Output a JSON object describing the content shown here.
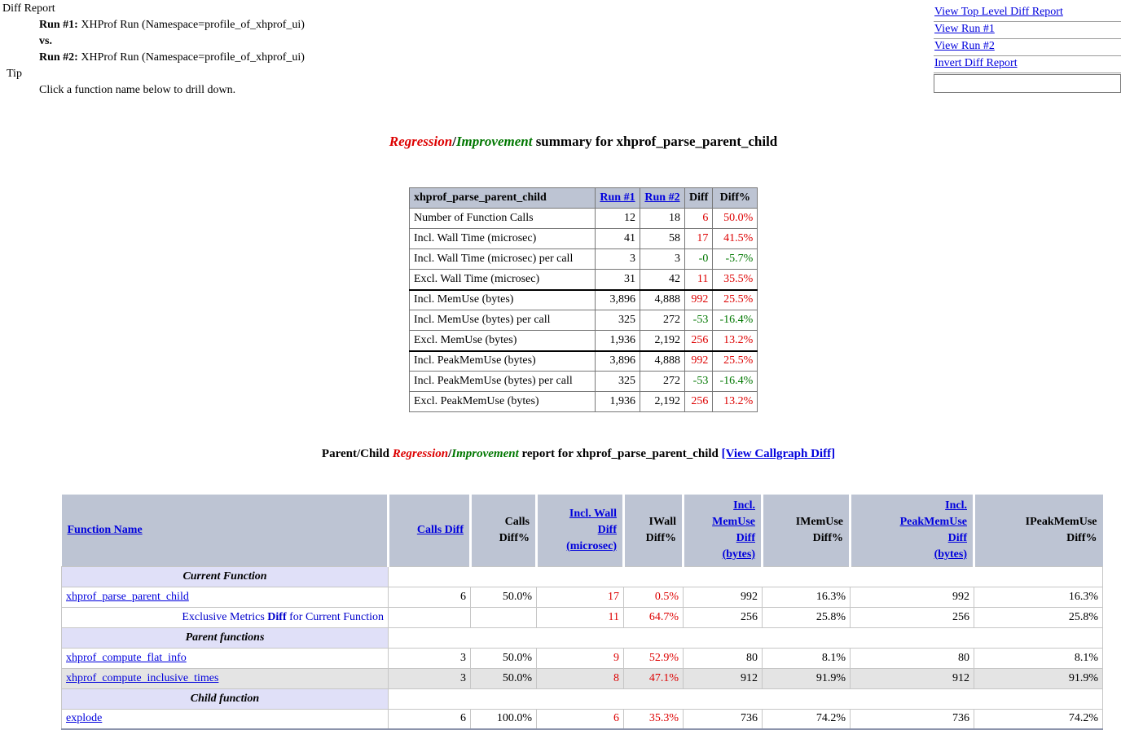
{
  "colors": {
    "link_blue": "#0000dd",
    "regression_red": "#dd0000",
    "improvement_green": "#007700",
    "table_header_bg": "#bdc4d3",
    "section_row_bg": "#e0e0f8",
    "shaded_row_bg": "#e4e4e4",
    "exclusive_label_blue": "#0000cc"
  },
  "top": {
    "diff_report": "Diff Report",
    "run1_label": "Run #1:",
    "run1_text": "XHProf Run (Namespace=profile_of_xhprof_ui)",
    "vs": "vs.",
    "run2_label": "Run #2:",
    "run2_text": "XHProf Run (Namespace=profile_of_xhprof_ui)",
    "tip_label": "Tip",
    "tip_text": "Click a function name below to drill down."
  },
  "nav": {
    "links": [
      "View Top Level Diff Report",
      "View Run #1",
      "View Run #2",
      "Invert Diff Report"
    ],
    "search_value": ""
  },
  "summary_title": {
    "part1": "Regression",
    "slash": "/",
    "part2": "Improvement",
    "rest": " summary for xhprof_parse_parent_child"
  },
  "summary_table": {
    "header": {
      "name": "xhprof_parse_parent_child",
      "run1": "Run #1",
      "run2": "Run #2",
      "diff": "Diff",
      "diffpct": "Diff%"
    },
    "rows": [
      {
        "label": "Number of Function Calls",
        "run1": "12",
        "run2": "18",
        "diff": "6",
        "diffpct": "50.0%",
        "trend": "red",
        "group_start": false
      },
      {
        "label": "Incl. Wall Time (microsec)",
        "run1": "41",
        "run2": "58",
        "diff": "17",
        "diffpct": "41.5%",
        "trend": "red",
        "group_start": false
      },
      {
        "label": "Incl. Wall Time (microsec) per call",
        "run1": "3",
        "run2": "3",
        "diff": "-0",
        "diffpct": "-5.7%",
        "trend": "green",
        "group_start": false
      },
      {
        "label": "Excl. Wall Time (microsec)",
        "run1": "31",
        "run2": "42",
        "diff": "11",
        "diffpct": "35.5%",
        "trend": "red",
        "group_start": false
      },
      {
        "label": "Incl. MemUse (bytes)",
        "run1": "3,896",
        "run2": "4,888",
        "diff": "992",
        "diffpct": "25.5%",
        "trend": "red",
        "group_start": true
      },
      {
        "label": "Incl. MemUse (bytes) per call",
        "run1": "325",
        "run2": "272",
        "diff": "-53",
        "diffpct": "-16.4%",
        "trend": "green",
        "group_start": false
      },
      {
        "label": "Excl. MemUse (bytes)",
        "run1": "1,936",
        "run2": "2,192",
        "diff": "256",
        "diffpct": "13.2%",
        "trend": "red",
        "group_start": false
      },
      {
        "label": "Incl. PeakMemUse (bytes)",
        "run1": "3,896",
        "run2": "4,888",
        "diff": "992",
        "diffpct": "25.5%",
        "trend": "red",
        "group_start": true
      },
      {
        "label": "Incl. PeakMemUse (bytes) per call",
        "run1": "325",
        "run2": "272",
        "diff": "-53",
        "diffpct": "-16.4%",
        "trend": "green",
        "group_start": false
      },
      {
        "label": "Excl. PeakMemUse (bytes)",
        "run1": "1,936",
        "run2": "2,192",
        "diff": "256",
        "diffpct": "13.2%",
        "trend": "red",
        "group_start": false
      }
    ]
  },
  "report_title": {
    "prefix": "Parent/Child ",
    "part1": "Regression",
    "slash": "/",
    "part2": "Improvement",
    "rest": " report for xhprof_parse_parent_child ",
    "callgraph_link": "[View Callgraph Diff]"
  },
  "report_table": {
    "columns": [
      {
        "label": "Function Name",
        "link": true
      },
      {
        "label": "Calls Diff",
        "link": true
      },
      {
        "label": "Calls\nDiff%",
        "link": false
      },
      {
        "label": "Incl. Wall\nDiff\n(microsec)",
        "link": true
      },
      {
        "label": "IWall\nDiff%",
        "link": false
      },
      {
        "label": "Incl.\nMemUse\nDiff\n(bytes)",
        "link": true
      },
      {
        "label": "IMemUse\nDiff%",
        "link": false
      },
      {
        "label": "Incl.\nPeakMemUse\nDiff\n(bytes)",
        "link": true
      },
      {
        "label": "IPeakMemUse\nDiff%",
        "link": false
      }
    ],
    "red_value_columns": [
      2,
      3
    ],
    "rows": [
      {
        "type": "section",
        "label": "Current Function",
        "shaded": false
      },
      {
        "type": "function",
        "name": "xhprof_parse_parent_child",
        "values": [
          "6",
          "50.0%",
          "17",
          "0.5%",
          "992",
          "16.3%",
          "992",
          "16.3%"
        ],
        "shaded": false
      },
      {
        "type": "exclusive",
        "label_pre": "Exclusive Metrics ",
        "label_bold": "Diff",
        "label_post": " for Current Function",
        "values": [
          "",
          "",
          "11",
          "64.7%",
          "256",
          "25.8%",
          "256",
          "25.8%"
        ],
        "shaded": false
      },
      {
        "type": "section",
        "label": "Parent functions",
        "shaded": false
      },
      {
        "type": "function",
        "name": "xhprof_compute_flat_info",
        "values": [
          "3",
          "50.0%",
          "9",
          "52.9%",
          "80",
          "8.1%",
          "80",
          "8.1%"
        ],
        "shaded": false
      },
      {
        "type": "function",
        "name": "xhprof_compute_inclusive_times",
        "values": [
          "3",
          "50.0%",
          "8",
          "47.1%",
          "912",
          "91.9%",
          "912",
          "91.9%"
        ],
        "shaded": true
      },
      {
        "type": "section",
        "label": "Child function",
        "shaded": false
      },
      {
        "type": "function",
        "name": "explode",
        "values": [
          "6",
          "100.0%",
          "6",
          "35.3%",
          "736",
          "74.2%",
          "736",
          "74.2%"
        ],
        "shaded": false
      }
    ]
  }
}
